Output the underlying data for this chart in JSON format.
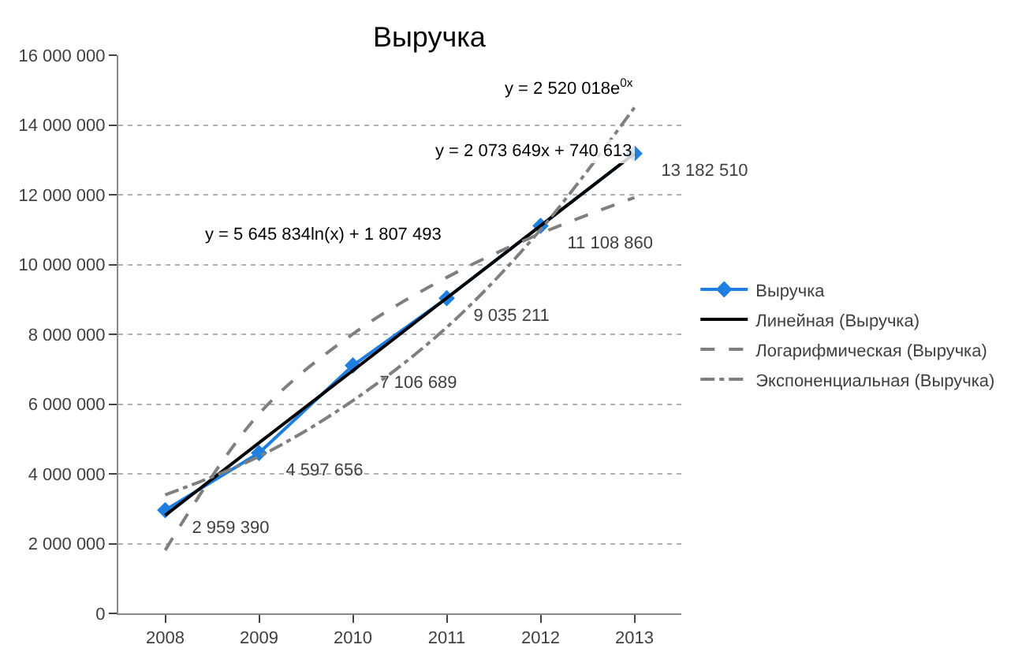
{
  "chart_data": {
    "type": "line",
    "title": "Выручка",
    "categories": [
      "2008",
      "2009",
      "2010",
      "2011",
      "2012",
      "2013"
    ],
    "series": [
      {
        "name": "Выручка",
        "color": "#1f7fe0",
        "values": [
          2959390,
          4597656,
          7106689,
          9035211,
          11108860,
          13182510
        ],
        "marker": "diamond",
        "line_style": "solid",
        "value_labels": [
          "2 959 390",
          "4 597 656",
          "7 106 689",
          "9 035 211",
          "11 108 860",
          "13 182 510"
        ]
      },
      {
        "name": "Линейная (Выручка)",
        "color": "#000000",
        "values": [
          2810000,
          4890000,
          6960000,
          9040000,
          11110000,
          13180000
        ],
        "marker": "none",
        "line_style": "solid"
      },
      {
        "name": "Логарифмическая (Выручка)",
        "color": "#7f7f7f",
        "values": [
          1810000,
          5720000,
          8010000,
          9630000,
          10890000,
          11920000
        ],
        "marker": "none",
        "line_style": "dashed"
      },
      {
        "name": "Экспоненциальная (Выручка)",
        "color": "#7f7f7f",
        "values": [
          3400000,
          4500000,
          6100000,
          8200000,
          11000000,
          14500000
        ],
        "marker": "none",
        "line_style": "dashdot"
      }
    ],
    "ylim": [
      0,
      16000000
    ],
    "yticks": [
      {
        "value": 0,
        "label": "0"
      },
      {
        "value": 2000000,
        "label": "2 000 000"
      },
      {
        "value": 4000000,
        "label": "4 000 000"
      },
      {
        "value": 6000000,
        "label": "6 000 000"
      },
      {
        "value": 8000000,
        "label": "8 000 000"
      },
      {
        "value": 10000000,
        "label": "10 000 000"
      },
      {
        "value": 12000000,
        "label": "12 000 000"
      },
      {
        "value": 14000000,
        "label": "14 000 000"
      },
      {
        "value": 16000000,
        "label": "16 000 000"
      }
    ],
    "grid": "y",
    "legend": "right",
    "annotations": [
      "y = 2 520 018e$^{0x}$",
      "y = 2 073 649x + 740 613",
      "y = 5 645 834ln(x) + 1 807 493"
    ]
  }
}
